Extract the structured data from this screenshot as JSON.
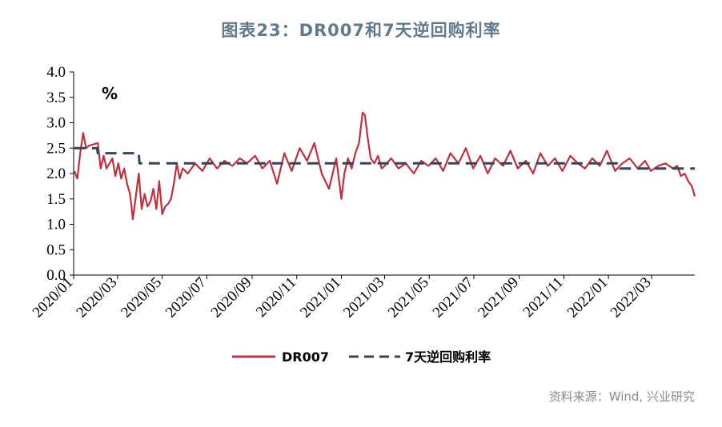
{
  "header": {
    "title": "图表23：DR007和7天逆回购利率"
  },
  "footer": {
    "source": "资料来源：Wind, 兴业研究"
  },
  "colors": {
    "dr007": "#c0303f",
    "reverse_repo": "#36435a",
    "title": "#5f7a8d",
    "axis": "#000000"
  },
  "chart_data": {
    "type": "line",
    "unit_label": "%",
    "ylim": [
      0,
      4
    ],
    "y_ticks": [
      "0.0",
      "0.5",
      "1.0",
      "1.5",
      "2.0",
      "2.5",
      "3.0",
      "3.5",
      "4.0"
    ],
    "x_tick_labels": [
      "2020/01",
      "2020/03",
      "2020/05",
      "2020/07",
      "2020/09",
      "2020/11",
      "2021/01",
      "2021/03",
      "2021/05",
      "2021/07",
      "2021/09",
      "2021/11",
      "2022/01",
      "2022/03"
    ],
    "x_range": [
      "2020/01",
      "2022/04"
    ],
    "grid": false,
    "legend_position": "bottom",
    "series": [
      {
        "name": "DR007",
        "style": "solid",
        "x": [
          "2020/01/02",
          "2020/01/06",
          "2020/01/10",
          "2020/01/14",
          "2020/01/18",
          "2020/01/22",
          "2020/02/03",
          "2020/02/07",
          "2020/02/11",
          "2020/02/15",
          "2020/02/19",
          "2020/02/23",
          "2020/02/27",
          "2020/03/02",
          "2020/03/06",
          "2020/03/10",
          "2020/03/14",
          "2020/03/18",
          "2020/03/22",
          "2020/03/26",
          "2020/03/30",
          "2020/04/03",
          "2020/04/07",
          "2020/04/11",
          "2020/04/15",
          "2020/04/19",
          "2020/04/23",
          "2020/04/27",
          "2020/05/01",
          "2020/05/05",
          "2020/05/09",
          "2020/05/13",
          "2020/05/17",
          "2020/05/21",
          "2020/05/25",
          "2020/05/29",
          "2020/06/05",
          "2020/06/15",
          "2020/06/25",
          "2020/07/05",
          "2020/07/15",
          "2020/07/25",
          "2020/08/05",
          "2020/08/15",
          "2020/08/25",
          "2020/09/05",
          "2020/09/15",
          "2020/09/25",
          "2020/10/05",
          "2020/10/15",
          "2020/10/25",
          "2020/11/05",
          "2020/11/15",
          "2020/11/25",
          "2020/12/05",
          "2020/12/15",
          "2020/12/25",
          "2021/01/01",
          "2021/01/05",
          "2021/01/10",
          "2021/01/15",
          "2021/01/20",
          "2021/01/25",
          "2021/01/30",
          "2021/02/02",
          "2021/02/06",
          "2021/02/10",
          "2021/02/15",
          "2021/02/20",
          "2021/02/25",
          "2021/03/01",
          "2021/03/10",
          "2021/03/20",
          "2021/03/30",
          "2021/04/10",
          "2021/04/20",
          "2021/04/30",
          "2021/05/10",
          "2021/05/20",
          "2021/05/30",
          "2021/06/10",
          "2021/06/20",
          "2021/06/30",
          "2021/07/10",
          "2021/07/20",
          "2021/07/30",
          "2021/08/10",
          "2021/08/20",
          "2021/08/30",
          "2021/09/10",
          "2021/09/20",
          "2021/09/30",
          "2021/10/10",
          "2021/10/20",
          "2021/10/30",
          "2021/11/10",
          "2021/11/20",
          "2021/11/30",
          "2021/12/10",
          "2021/12/20",
          "2021/12/30",
          "2022/01/10",
          "2022/01/20",
          "2022/01/30",
          "2022/02/10",
          "2022/02/20",
          "2022/02/28",
          "2022/03/10",
          "2022/03/20",
          "2022/03/30",
          "2022/04/05",
          "2022/04/10",
          "2022/04/15",
          "2022/04/20",
          "2022/04/25",
          "2022/04/29"
        ],
        "values": [
          2.05,
          1.9,
          2.4,
          2.8,
          2.5,
          2.55,
          2.6,
          2.1,
          2.35,
          2.1,
          2.2,
          2.3,
          1.95,
          2.2,
          1.9,
          2.1,
          1.8,
          1.6,
          1.1,
          1.55,
          2.0,
          1.3,
          1.6,
          1.35,
          1.45,
          1.7,
          1.3,
          1.85,
          1.2,
          1.35,
          1.4,
          1.5,
          1.8,
          2.2,
          1.9,
          2.1,
          2.0,
          2.2,
          2.05,
          2.3,
          2.1,
          2.25,
          2.15,
          2.3,
          2.2,
          2.35,
          2.1,
          2.25,
          1.8,
          2.4,
          2.05,
          2.5,
          2.25,
          2.6,
          2.0,
          1.7,
          2.3,
          1.5,
          2.0,
          2.3,
          2.1,
          2.4,
          2.6,
          3.2,
          3.15,
          2.7,
          2.3,
          2.2,
          2.35,
          2.1,
          2.15,
          2.3,
          2.1,
          2.2,
          2.0,
          2.25,
          2.15,
          2.3,
          2.05,
          2.4,
          2.2,
          2.5,
          2.1,
          2.35,
          2.0,
          2.3,
          2.15,
          2.45,
          2.1,
          2.25,
          2.0,
          2.4,
          2.15,
          2.3,
          2.05,
          2.35,
          2.2,
          2.1,
          2.3,
          2.15,
          2.45,
          2.05,
          2.2,
          2.3,
          2.1,
          2.25,
          2.05,
          2.15,
          2.2,
          2.1,
          2.15,
          1.95,
          2.0,
          1.85,
          1.75,
          1.55
        ]
      },
      {
        "name": "7天逆回购利率",
        "style": "dashed",
        "x": [
          "2020/01/02",
          "2020/02/02",
          "2020/02/03",
          "2020/03/30",
          "2020/03/31",
          "2022/01/16",
          "2022/01/17",
          "2022/04/29"
        ],
        "values": [
          2.5,
          2.5,
          2.4,
          2.4,
          2.2,
          2.2,
          2.1,
          2.1
        ]
      }
    ]
  }
}
